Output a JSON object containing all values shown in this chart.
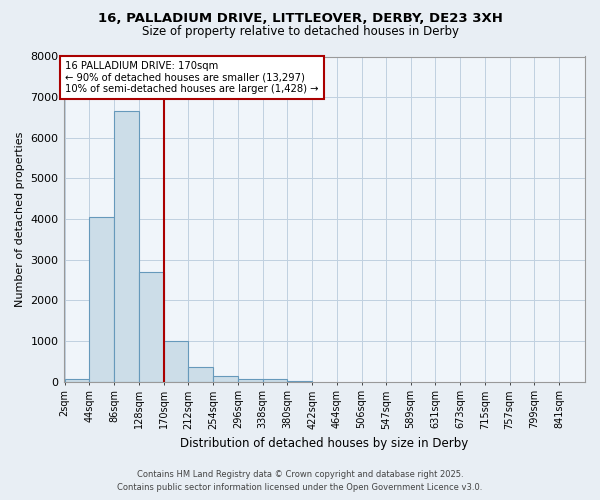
{
  "title_line1": "16, PALLADIUM DRIVE, LITTLEOVER, DERBY, DE23 3XH",
  "title_line2": "Size of property relative to detached houses in Derby",
  "xlabel": "Distribution of detached houses by size in Derby",
  "ylabel": "Number of detached properties",
  "bin_labels": [
    "2sqm",
    "44sqm",
    "86sqm",
    "128sqm",
    "170sqm",
    "212sqm",
    "254sqm",
    "296sqm",
    "338sqm",
    "380sqm",
    "422sqm",
    "464sqm",
    "506sqm",
    "547sqm",
    "589sqm",
    "631sqm",
    "673sqm",
    "715sqm",
    "757sqm",
    "799sqm",
    "841sqm"
  ],
  "bin_left_edges": [
    2,
    44,
    86,
    128,
    170,
    212,
    254,
    296,
    338,
    380,
    422,
    464,
    506,
    547,
    589,
    631,
    673,
    715,
    757,
    799,
    841
  ],
  "bar_heights": [
    60,
    4050,
    6650,
    2700,
    1000,
    350,
    130,
    70,
    50,
    20,
    0,
    0,
    0,
    0,
    0,
    0,
    0,
    0,
    0,
    0,
    0
  ],
  "bar_color": "#ccdde8",
  "bar_edge_color": "#6699bb",
  "grid_color": "#c0d0e0",
  "red_line_x": 170,
  "annotation_text_line1": "16 PALLADIUM DRIVE: 170sqm",
  "annotation_text_line2": "← 90% of detached houses are smaller (13,297)",
  "annotation_text_line3": "10% of semi-detached houses are larger (1,428) →",
  "annotation_box_edgecolor": "#aa0000",
  "ylim": [
    0,
    8000
  ],
  "yticks": [
    0,
    1000,
    2000,
    3000,
    4000,
    5000,
    6000,
    7000,
    8000
  ],
  "footer_line1": "Contains HM Land Registry data © Crown copyright and database right 2025.",
  "footer_line2": "Contains public sector information licensed under the Open Government Licence v3.0.",
  "bg_color": "#e8eef4",
  "plot_bg_color": "#f0f5fa"
}
